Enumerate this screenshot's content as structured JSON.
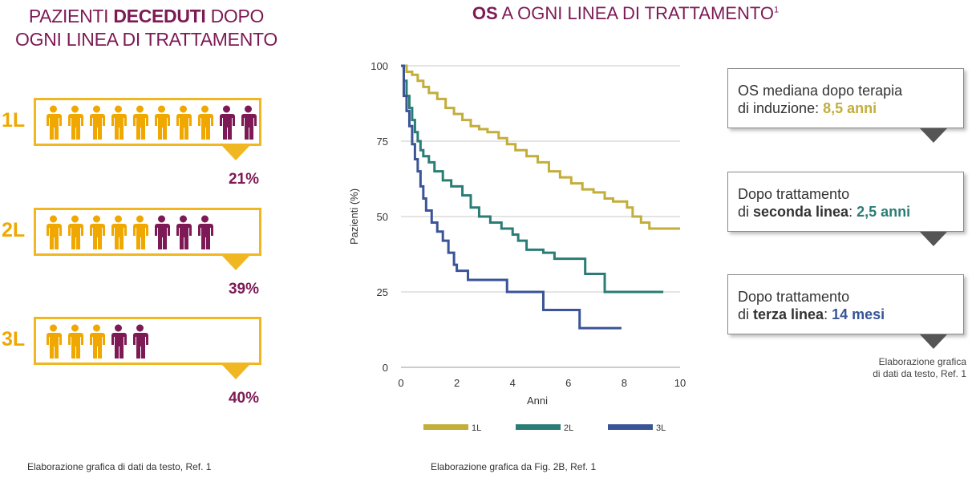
{
  "left": {
    "title_pre": "PAZIENTI ",
    "title_bold": "DECEDUTI",
    "title_post": " DOPO",
    "title_line2": "OGNI LINEA DI TRATTAMENTO",
    "rows": [
      {
        "label": "1L",
        "alive": 8,
        "deceased": 2,
        "percent": "21%"
      },
      {
        "label": "2L",
        "alive": 5,
        "deceased": 3,
        "percent": "39%"
      },
      {
        "label": "3L",
        "alive": 3,
        "deceased": 2,
        "percent": "40%"
      }
    ],
    "footnote": "Elaborazione grafica di dati da testo, Ref. 1",
    "colors": {
      "alive": "#f0a800",
      "deceased": "#7d1a55"
    }
  },
  "right": {
    "title_bold": "OS",
    "title_rest": " A OGNI LINEA DI TRATTAMENTO",
    "title_sup": "1",
    "footnote": "Elaborazione grafica da Fig. 2B, Ref. 1",
    "infoboxes": [
      {
        "pre": "OS mediana dopo terapia",
        "line2_pre": "di induzione: ",
        "line2_bold": "",
        "line2_mid": "",
        "value": "8,5 anni",
        "color": "#c3ae3a"
      },
      {
        "pre": "Dopo trattamento",
        "line2_pre": "di ",
        "line2_bold": "seconda linea",
        "line2_mid": ": ",
        "value": "2,5 anni",
        "color": "#2a7d76"
      },
      {
        "pre": "Dopo trattamento",
        "line2_pre": "di ",
        "line2_bold": "terza linea",
        "line2_mid": ": ",
        "value": "14 mesi",
        "color": "#3a5497"
      }
    ],
    "credit_line1": "Elaborazione grafica",
    "credit_line2": "di dati da testo, Ref. 1"
  },
  "chart_data": {
    "type": "line",
    "xlabel": "Anni",
    "ylabel": "Pazienti (%)",
    "xlim": [
      0,
      10
    ],
    "ylim": [
      0,
      100
    ],
    "xticks": [
      0,
      2,
      4,
      6,
      8,
      10
    ],
    "yticks": [
      0,
      25,
      50,
      75,
      100
    ],
    "grid": "horizontal",
    "legend": "bottom",
    "series": [
      {
        "name": "1L",
        "color": "#c3ae3a",
        "step": true,
        "points": [
          [
            0,
            100
          ],
          [
            0.2,
            98
          ],
          [
            0.4,
            97
          ],
          [
            0.6,
            95
          ],
          [
            0.8,
            93
          ],
          [
            1,
            91
          ],
          [
            1.3,
            89
          ],
          [
            1.6,
            86
          ],
          [
            1.9,
            84
          ],
          [
            2.2,
            82
          ],
          [
            2.5,
            80
          ],
          [
            2.8,
            79
          ],
          [
            3.1,
            78
          ],
          [
            3.5,
            76
          ],
          [
            3.8,
            74
          ],
          [
            4.1,
            72
          ],
          [
            4.5,
            70
          ],
          [
            4.9,
            68
          ],
          [
            5.3,
            65
          ],
          [
            5.7,
            63
          ],
          [
            6.1,
            61
          ],
          [
            6.5,
            59
          ],
          [
            6.9,
            58
          ],
          [
            7.3,
            56
          ],
          [
            7.6,
            55
          ],
          [
            8.1,
            53
          ],
          [
            8.3,
            50
          ],
          [
            8.6,
            48
          ],
          [
            8.9,
            46
          ],
          [
            10,
            46
          ]
        ]
      },
      {
        "name": "2L",
        "color": "#2a7d76",
        "step": true,
        "points": [
          [
            0,
            100
          ],
          [
            0.1,
            95
          ],
          [
            0.2,
            90
          ],
          [
            0.3,
            86
          ],
          [
            0.4,
            82
          ],
          [
            0.5,
            78
          ],
          [
            0.6,
            75
          ],
          [
            0.7,
            72
          ],
          [
            0.8,
            70
          ],
          [
            1,
            68
          ],
          [
            1.2,
            65
          ],
          [
            1.5,
            62
          ],
          [
            1.8,
            60
          ],
          [
            2.2,
            57
          ],
          [
            2.5,
            53
          ],
          [
            2.8,
            50
          ],
          [
            3.2,
            48
          ],
          [
            3.6,
            46
          ],
          [
            4,
            44
          ],
          [
            4.2,
            42
          ],
          [
            4.5,
            39
          ],
          [
            5.1,
            38
          ],
          [
            5.5,
            36
          ],
          [
            6.5,
            36
          ],
          [
            6.6,
            31
          ],
          [
            7.1,
            31
          ],
          [
            7.3,
            25
          ],
          [
            9.4,
            25
          ]
        ]
      },
      {
        "name": "3L",
        "color": "#3a5497",
        "step": true,
        "points": [
          [
            0,
            100
          ],
          [
            0.1,
            90
          ],
          [
            0.2,
            85
          ],
          [
            0.3,
            80
          ],
          [
            0.4,
            74
          ],
          [
            0.5,
            69
          ],
          [
            0.6,
            65
          ],
          [
            0.7,
            60
          ],
          [
            0.8,
            56
          ],
          [
            0.9,
            52
          ],
          [
            1.1,
            48
          ],
          [
            1.3,
            45
          ],
          [
            1.5,
            42
          ],
          [
            1.7,
            38
          ],
          [
            1.9,
            34
          ],
          [
            2,
            32
          ],
          [
            2.4,
            29
          ],
          [
            3.7,
            29
          ],
          [
            3.8,
            25
          ],
          [
            5,
            25
          ],
          [
            5.1,
            19
          ],
          [
            6.3,
            19
          ],
          [
            6.4,
            13
          ],
          [
            7.9,
            13
          ]
        ]
      }
    ]
  }
}
